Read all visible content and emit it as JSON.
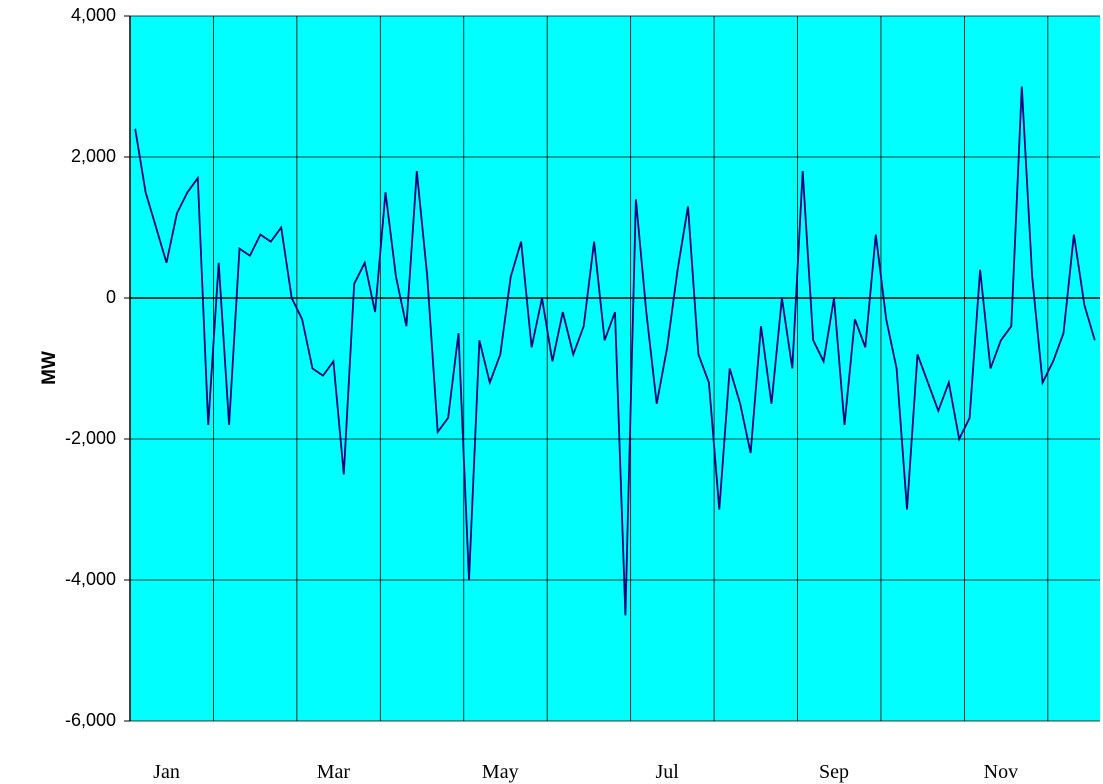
{
  "chart_data": {
    "type": "line",
    "y_label": "MW",
    "categories": [
      null,
      null,
      null,
      "Jan",
      null,
      null,
      null,
      null,
      null,
      null,
      null,
      null,
      null,
      null,
      null,
      null,
      null,
      null,
      null,
      "Mar",
      null,
      null,
      null,
      null,
      null,
      null,
      null,
      null,
      null,
      null,
      null,
      null,
      null,
      null,
      null,
      "May",
      null,
      null,
      null,
      null,
      null,
      null,
      null,
      null,
      null,
      null,
      null,
      null,
      null,
      null,
      null,
      "Jul",
      null,
      null,
      null,
      null,
      null,
      null,
      null,
      null,
      null,
      null,
      null,
      null,
      null,
      null,
      null,
      "Sep",
      null,
      null,
      null,
      null,
      null,
      null,
      null,
      null,
      null,
      null,
      null,
      null,
      null,
      null,
      null,
      "Nov",
      null,
      null,
      null,
      null,
      null,
      null,
      null,
      null,
      null
    ],
    "series": [
      {
        "color": "#000080",
        "values": [
          2400,
          1500,
          1000,
          500,
          1200,
          1500,
          1700,
          -1800,
          500,
          -1800,
          700,
          600,
          900,
          800,
          1000,
          0,
          -300,
          -1000,
          -1100,
          -900,
          -2500,
          200,
          500,
          -200,
          1500,
          300,
          -400,
          1800,
          300,
          -1900,
          -1700,
          -500,
          -4000,
          -600,
          -1200,
          -800,
          300,
          800,
          -700,
          0,
          -900,
          -200,
          -800,
          -400,
          800,
          -600,
          -200,
          -4500,
          1400,
          -200,
          -1500,
          -700,
          400,
          1300,
          -800,
          -1200,
          -3000,
          -1000,
          -1500,
          -2200,
          -400,
          -1500,
          0,
          -1000,
          1800,
          -600,
          -900,
          0,
          -1800,
          -300,
          -700,
          900,
          -300,
          -1000,
          -3000,
          -800,
          -1200,
          -1600,
          -1200,
          -2000,
          -1700,
          400,
          -1000,
          -600,
          -400,
          3000,
          300,
          -1200,
          -900,
          -500,
          900,
          -100,
          -600
        ]
      }
    ],
    "ylim": [
      -6000,
      4000
    ],
    "yticks": [
      {
        "value": -6000,
        "label": "-6,000"
      },
      {
        "value": -4000,
        "label": "-4,000"
      },
      {
        "value": -2000,
        "label": "-2,000"
      },
      0,
      {
        "value": 2000,
        "label": "2,000"
      },
      {
        "value": 4000,
        "label": "4,000"
      }
    ],
    "grid": true,
    "plot_background": "#00ffff"
  }
}
